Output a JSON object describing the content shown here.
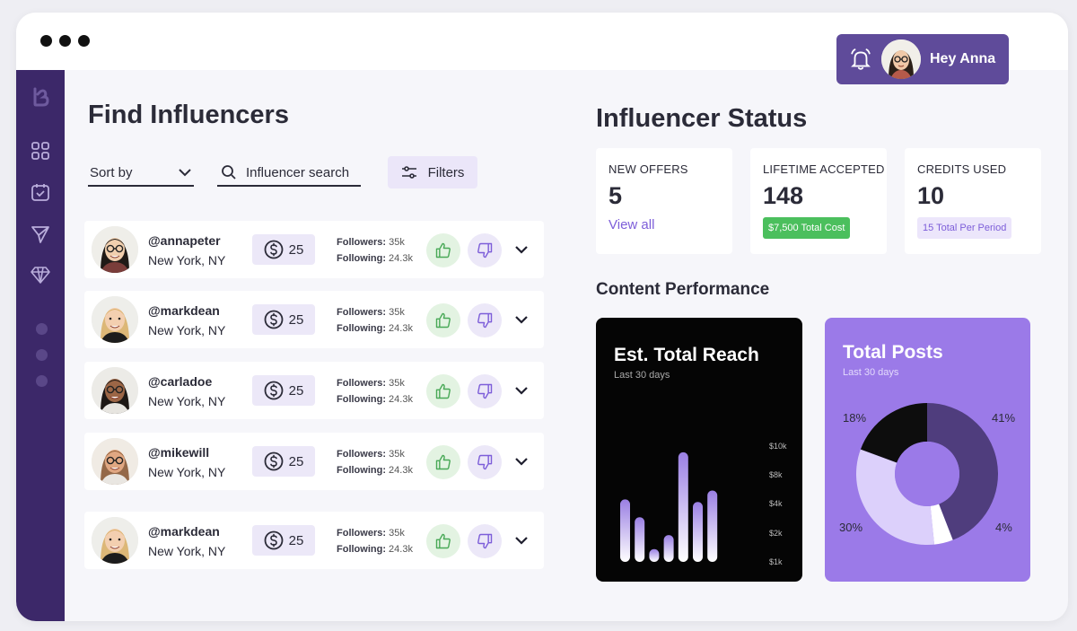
{
  "header": {
    "user_greeting": "Hey Anna"
  },
  "left": {
    "title": "Find Influencers",
    "sort_label": "Sort by",
    "search_placeholder": "Influencer search",
    "filters_label": "Filters",
    "rows": [
      {
        "handle": "@annapeter",
        "location": "New York, NY",
        "credits": "25",
        "followers_label": "Followers:",
        "followers": "35k",
        "following_label": "Following:",
        "following": "24.3k"
      },
      {
        "handle": "@markdean",
        "location": "New York, NY",
        "credits": "25",
        "followers_label": "Followers:",
        "followers": "35k",
        "following_label": "Following:",
        "following": "24.3k"
      },
      {
        "handle": "@carladoe",
        "location": "New York, NY",
        "credits": "25",
        "followers_label": "Followers:",
        "followers": "35k",
        "following_label": "Following:",
        "following": "24.3k"
      },
      {
        "handle": "@mikewill",
        "location": "New York, NY",
        "credits": "25",
        "followers_label": "Followers:",
        "followers": "35k",
        "following_label": "Following:",
        "following": "24.3k"
      },
      {
        "handle": "@markdean",
        "location": "New York, NY",
        "credits": "25",
        "followers_label": "Followers:",
        "followers": "35k",
        "following_label": "Following:",
        "following": "24.3k"
      }
    ]
  },
  "status": {
    "title": "Influencer Status",
    "cards": [
      {
        "label": "NEW OFFERS",
        "value": "5",
        "link": "View all"
      },
      {
        "label": "LIFETIME ACCEPTED",
        "value": "148",
        "badge": "$7,500 Total Cost",
        "badge_color": "#4bbf5d"
      },
      {
        "label": "CREDITS USED",
        "value": "10",
        "badge": "15 Total Per Period",
        "badge_color": "#ece6fb"
      }
    ]
  },
  "performance": {
    "title": "Content Performance",
    "reach": {
      "title": "Est. Total Reach",
      "subtitle": "Last 30 days"
    },
    "posts": {
      "title": "Total Posts",
      "subtitle": "Last 30 days"
    }
  },
  "colors": {
    "sidebar": "#3c2869",
    "accent": "#7d5ed9",
    "posts_bg": "#9b7ae8"
  },
  "icons": [
    "bell-icon",
    "logo-icon",
    "grid-icon",
    "calendar-check-icon",
    "send-icon",
    "diamond-icon",
    "search-icon",
    "sliders-icon",
    "dollar-coin-icon",
    "thumbs-up-icon",
    "thumbs-down-icon",
    "chevron-down-icon"
  ],
  "chart_data": [
    {
      "type": "bar",
      "title": "Est. Total Reach",
      "subtitle": "Last 30 days",
      "yticks": [
        "$1k",
        "$2k",
        "$4k",
        "$8k",
        "$10k"
      ],
      "values": [
        4.9,
        3.5,
        1.0,
        2.1,
        8.6,
        4.7,
        5.6
      ],
      "ylim": [
        0,
        10
      ]
    },
    {
      "type": "pie",
      "title": "Total Posts",
      "subtitle": "Last 30 days",
      "slices": [
        {
          "label": "41%",
          "value": 41,
          "color": "#4f3d7d"
        },
        {
          "label": "4%",
          "value": 4,
          "color": "#ffffff"
        },
        {
          "label": "30%",
          "value": 30,
          "color": "#dcd0fb"
        },
        {
          "label": "18%",
          "value": 18,
          "color": "#0d0d0d"
        }
      ]
    }
  ]
}
